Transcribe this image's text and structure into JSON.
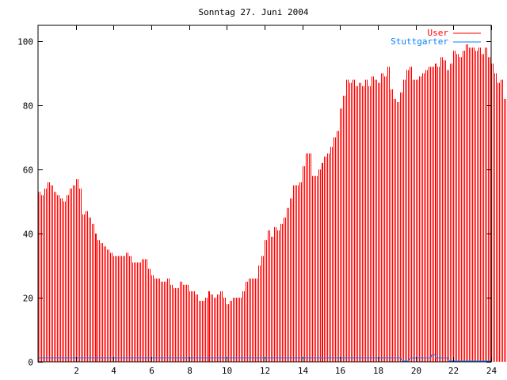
{
  "chart_data": {
    "type": "bar",
    "title": "Sonntag 27. Juni 2004",
    "xlabel": "",
    "ylabel": "",
    "xlim": [
      0,
      24
    ],
    "ylim": [
      0,
      105
    ],
    "x_ticks": [
      "2",
      "4",
      "6",
      "8",
      "10",
      "12",
      "14",
      "16",
      "18",
      "20",
      "22",
      "24"
    ],
    "y_ticks": [
      "0",
      "20",
      "40",
      "60",
      "80",
      "100"
    ],
    "legend_position": "top-right",
    "grid": false,
    "interval_minutes": 10,
    "series": [
      {
        "name": "User",
        "color": "#ff0000",
        "style": "impulses",
        "values": [
          53,
          52,
          54,
          56,
          55,
          53,
          52,
          51,
          50,
          52,
          54,
          55,
          57,
          54,
          46,
          47,
          45,
          43,
          40,
          38,
          37,
          36,
          35,
          34,
          33,
          33,
          33,
          33,
          34,
          33,
          31,
          31,
          31,
          32,
          32,
          29,
          27,
          26,
          26,
          25,
          25,
          26,
          24,
          23,
          23,
          25,
          24,
          24,
          22,
          22,
          21,
          19,
          19,
          20,
          22,
          21,
          20,
          21,
          22,
          20,
          18,
          19,
          20,
          20,
          20,
          22,
          25,
          26,
          26,
          26,
          30,
          33,
          38,
          41,
          39,
          42,
          41,
          43,
          45,
          48,
          51,
          55,
          55,
          56,
          61,
          65,
          65,
          58,
          58,
          60,
          62,
          64,
          65,
          67,
          70,
          72,
          79,
          83,
          88,
          87,
          88,
          86,
          87,
          86,
          88,
          86,
          89,
          88,
          87,
          90,
          89,
          92,
          85,
          82,
          81,
          84,
          88,
          91,
          92,
          88,
          88,
          89,
          90,
          91,
          92,
          92,
          93,
          92,
          95,
          94,
          91,
          93,
          97,
          96,
          95,
          97,
          99,
          98,
          98,
          97,
          98,
          96,
          98,
          95,
          93,
          90,
          87,
          88,
          82,
          76
        ]
      },
      {
        "name": "Stuttgarter",
        "color": "#0080ff",
        "style": "line",
        "x": [
          0,
          19.2,
          19.3,
          19.6,
          19.7,
          20.8,
          20.85,
          21.0,
          21.1,
          21.7,
          21.8,
          24
        ],
        "y": [
          1,
          1,
          0,
          0,
          1,
          1,
          2,
          2,
          1,
          1,
          0,
          0
        ]
      }
    ]
  }
}
